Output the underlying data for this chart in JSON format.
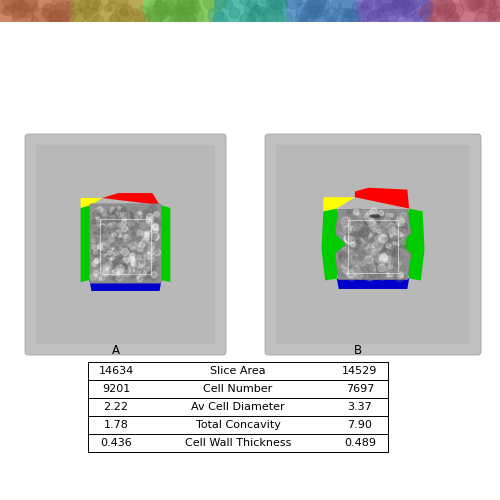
{
  "background_color": "#ffffff",
  "header_colors": [
    "#cc8866",
    "#bbaa55",
    "#88cc66",
    "#55bbaa",
    "#6699cc",
    "#8877cc",
    "#cc7788"
  ],
  "table_headers": [
    "A",
    "B"
  ],
  "table_rows": [
    [
      "14634",
      "Slice Area",
      "14529"
    ],
    [
      "9201",
      "Cell Number",
      "7697"
    ],
    [
      "2.22",
      "Av Cell Diameter",
      "3.37"
    ],
    [
      "1.78",
      "Total Concavity",
      "7.90"
    ],
    [
      "0.436",
      "Cell Wall Thickness",
      "0.489"
    ]
  ],
  "panel_bg": "#c0c0c0",
  "inner_bg": "#b8b8b8",
  "bread_gray": "#909090",
  "red": "#ff0000",
  "green": "#00cc00",
  "yellow": "#ffff00",
  "blue": "#0000cc",
  "dark": "#333333",
  "white": "#ffffff"
}
